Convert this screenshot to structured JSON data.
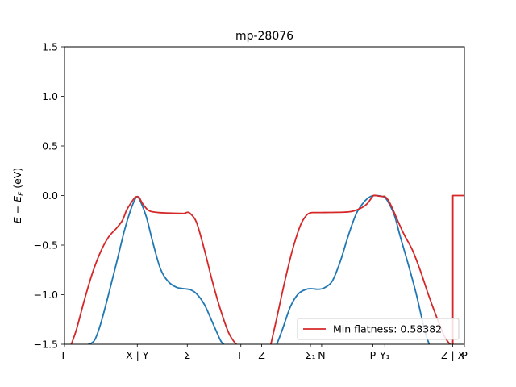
{
  "chart_data": {
    "type": "line",
    "title": "mp-28076",
    "xlabel": "",
    "ylabel_parts": {
      "e": "E",
      "minus": " − ",
      "ef": "E",
      "sub": "F",
      "unit": " (eV)"
    },
    "ylim": [
      -1.5,
      1.5
    ],
    "xlim": [
      0,
      100
    ],
    "yticks": [
      -1.5,
      -1.0,
      -0.5,
      0.0,
      0.5,
      1.0,
      1.5
    ],
    "ytick_labels": [
      "−1.5",
      "−1.0",
      "−0.5",
      "0.0",
      "0.5",
      "1.0",
      "1.5"
    ],
    "xticks": [
      {
        "x": 0,
        "label": "Γ"
      },
      {
        "x": 18.2,
        "label": "X | Y"
      },
      {
        "x": 30.7,
        "label": "Σ"
      },
      {
        "x": 44.1,
        "label": "Γ"
      },
      {
        "x": 49.3,
        "label": "Z"
      },
      {
        "x": 61.5,
        "label": "Σ₁"
      },
      {
        "x": 64.3,
        "label": "N"
      },
      {
        "x": 77.1,
        "label": "P"
      },
      {
        "x": 80.1,
        "label": "Y₁"
      },
      {
        "x": 97.1,
        "label": "Z | X"
      },
      {
        "x": 100,
        "label": "P"
      }
    ],
    "grid": false,
    "legend": {
      "placement": "lower-right",
      "entries": [
        "Min flatness: 0.58382"
      ]
    },
    "series": [
      {
        "color": "#1f77b4",
        "x": [
          6.0,
          7.5,
          9.0,
          11.0,
          13.0,
          15.0,
          16.5,
          17.5,
          18.2,
          19.0,
          20.5,
          22.0,
          24.0,
          26.0,
          28.0,
          30.0,
          31.5,
          33.0,
          35.0,
          37.0,
          39.0,
          39.8
        ],
        "y": [
          -1.5,
          -1.46,
          -1.3,
          -1.0,
          -0.68,
          -0.35,
          -0.15,
          -0.05,
          -0.01,
          -0.06,
          -0.22,
          -0.46,
          -0.74,
          -0.87,
          -0.925,
          -0.94,
          -0.95,
          -0.99,
          -1.1,
          -1.28,
          -1.46,
          -1.5
        ]
      },
      {
        "color": "#1f77b4",
        "x": [
          53.1,
          54.5,
          56.5,
          58.5,
          60.5,
          62.0,
          63.5,
          65.0,
          67.0,
          69.0,
          71.0,
          73.0,
          75.0,
          76.5,
          77.6,
          79.0,
          80.1,
          81.0,
          82.5,
          84.0,
          86.0,
          88.0,
          90.0,
          91.2
        ],
        "y": [
          -1.5,
          -1.35,
          -1.12,
          -0.99,
          -0.945,
          -0.94,
          -0.945,
          -0.93,
          -0.86,
          -0.66,
          -0.4,
          -0.18,
          -0.06,
          -0.01,
          0.0,
          -0.005,
          -0.02,
          -0.07,
          -0.2,
          -0.42,
          -0.7,
          -1.0,
          -1.35,
          -1.5
        ]
      },
      {
        "color": "#d62728",
        "x": [
          1.7,
          3.0,
          5.0,
          7.0,
          9.0,
          11.0,
          13.0,
          14.5,
          15.5,
          16.7,
          17.6,
          18.2,
          18.7,
          19.5,
          21.0,
          23.0,
          25.0,
          27.0,
          29.0,
          30.0,
          30.7,
          31.4,
          33.0,
          35.0,
          37.0,
          39.0,
          41.0,
          42.5,
          43.0
        ],
        "y": [
          -1.5,
          -1.35,
          -1.05,
          -0.78,
          -0.57,
          -0.42,
          -0.33,
          -0.25,
          -0.15,
          -0.07,
          -0.02,
          -0.01,
          -0.02,
          -0.08,
          -0.15,
          -0.17,
          -0.175,
          -0.178,
          -0.18,
          -0.18,
          -0.17,
          -0.18,
          -0.27,
          -0.55,
          -0.87,
          -1.15,
          -1.38,
          -1.48,
          -1.5
        ]
      },
      {
        "color": "#d62728",
        "x": [
          51.6,
          53.0,
          55.0,
          57.0,
          59.0,
          60.5,
          61.5,
          62.5,
          64.0,
          66.0,
          68.0,
          70.0,
          72.0,
          74.0,
          75.5,
          76.5,
          77.3,
          78.5,
          79.5,
          80.1,
          81.0,
          82.0,
          83.5,
          85.0,
          87.0,
          89.0,
          91.0,
          93.0,
          95.0,
          96.4
        ],
        "y": [
          -1.5,
          -1.25,
          -0.88,
          -0.55,
          -0.3,
          -0.2,
          -0.175,
          -0.172,
          -0.172,
          -0.171,
          -0.17,
          -0.168,
          -0.16,
          -0.13,
          -0.09,
          -0.04,
          0.0,
          -0.005,
          -0.01,
          -0.01,
          -0.05,
          -0.13,
          -0.27,
          -0.4,
          -0.55,
          -0.76,
          -1.0,
          -1.22,
          -1.42,
          -1.5
        ]
      },
      {
        "color": "#d62728",
        "x": [
          97.1,
          97.1,
          97.6,
          100.0
        ],
        "y": [
          -1.5,
          0.0,
          0.0,
          0.0
        ]
      }
    ]
  }
}
